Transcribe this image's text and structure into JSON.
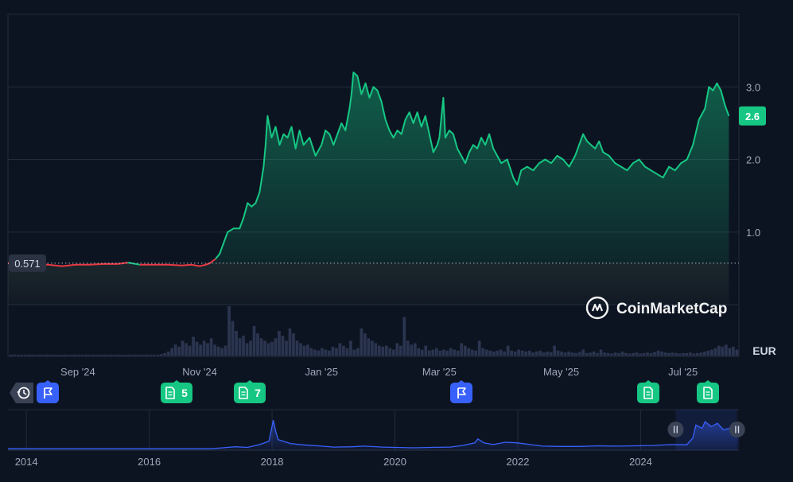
{
  "currency": "EUR",
  "brand": {
    "name": "CoinMarketCap"
  },
  "colors": {
    "background": "#0d1421",
    "up": "#16c784",
    "down": "#ea3943",
    "navigator_line": "#3861fb",
    "grid": "#222b3c",
    "volume": "#2b3550",
    "flag_marker": "#3861fb",
    "news_marker": "#16c784"
  },
  "chart_data": [
    {
      "type": "area",
      "name": "price",
      "baseline": {
        "value": 0.571,
        "label": "0.571"
      },
      "current": {
        "value": 2.6,
        "label": "2.6"
      },
      "y_ticks": [
        {
          "value": 1.0,
          "label": "1.0"
        },
        {
          "value": 2.0,
          "label": "2.0"
        },
        {
          "value": 3.0,
          "label": "3.0"
        }
      ],
      "x_ticks": [
        {
          "date": "2024-09-01",
          "label": "Sep '24"
        },
        {
          "date": "2024-11-01",
          "label": "Nov '24"
        },
        {
          "date": "2025-01-01",
          "label": "Jan '25"
        },
        {
          "date": "2025-03-01",
          "label": "Mar '25"
        },
        {
          "date": "2025-05-01",
          "label": "May '25"
        },
        {
          "date": "2025-07-01",
          "label": "Jul '25"
        }
      ],
      "ylim": [
        0.0,
        4.0
      ],
      "xlim": [
        "2024-07-28",
        "2025-07-29"
      ],
      "grid": true,
      "points": [
        [
          "2024-07-28",
          0.57
        ],
        [
          "2024-08-03",
          0.56
        ],
        [
          "2024-08-10",
          0.55
        ],
        [
          "2024-08-17",
          0.55
        ],
        [
          "2024-08-24",
          0.53
        ],
        [
          "2024-08-31",
          0.55
        ],
        [
          "2024-09-07",
          0.55
        ],
        [
          "2024-09-14",
          0.56
        ],
        [
          "2024-09-21",
          0.56
        ],
        [
          "2024-09-26",
          0.58
        ],
        [
          "2024-10-02",
          0.55
        ],
        [
          "2024-10-09",
          0.55
        ],
        [
          "2024-10-16",
          0.55
        ],
        [
          "2024-10-23",
          0.54
        ],
        [
          "2024-10-28",
          0.55
        ],
        [
          "2024-11-01",
          0.53
        ],
        [
          "2024-11-04",
          0.55
        ],
        [
          "2024-11-06",
          0.57
        ],
        [
          "2024-11-09",
          0.63
        ],
        [
          "2024-11-11",
          0.7
        ],
        [
          "2024-11-13",
          0.85
        ],
        [
          "2024-11-15",
          1.0
        ],
        [
          "2024-11-18",
          1.05
        ],
        [
          "2024-11-21",
          1.05
        ],
        [
          "2024-11-23",
          1.2
        ],
        [
          "2024-11-25",
          1.4
        ],
        [
          "2024-11-27",
          1.35
        ],
        [
          "2024-11-29",
          1.4
        ],
        [
          "2024-12-01",
          1.55
        ],
        [
          "2024-12-03",
          1.9
        ],
        [
          "2024-12-04",
          2.2
        ],
        [
          "2024-12-05",
          2.6
        ],
        [
          "2024-12-07",
          2.3
        ],
        [
          "2024-12-09",
          2.45
        ],
        [
          "2024-12-11",
          2.2
        ],
        [
          "2024-12-13",
          2.35
        ],
        [
          "2024-12-15",
          2.3
        ],
        [
          "2024-12-17",
          2.45
        ],
        [
          "2024-12-19",
          2.15
        ],
        [
          "2024-12-21",
          2.4
        ],
        [
          "2024-12-23",
          2.2
        ],
        [
          "2024-12-26",
          2.3
        ],
        [
          "2024-12-29",
          2.05
        ],
        [
          "2025-01-01",
          2.2
        ],
        [
          "2025-01-03",
          2.4
        ],
        [
          "2025-01-05",
          2.35
        ],
        [
          "2025-01-07",
          2.2
        ],
        [
          "2025-01-09",
          2.35
        ],
        [
          "2025-01-11",
          2.5
        ],
        [
          "2025-01-13",
          2.4
        ],
        [
          "2025-01-15",
          2.7
        ],
        [
          "2025-01-16",
          2.9
        ],
        [
          "2025-01-17",
          3.2
        ],
        [
          "2025-01-19",
          3.15
        ],
        [
          "2025-01-21",
          2.9
        ],
        [
          "2025-01-23",
          3.05
        ],
        [
          "2025-01-25",
          2.85
        ],
        [
          "2025-01-27",
          3.0
        ],
        [
          "2025-01-29",
          2.95
        ],
        [
          "2025-01-31",
          2.8
        ],
        [
          "2025-02-02",
          2.55
        ],
        [
          "2025-02-04",
          2.4
        ],
        [
          "2025-02-06",
          2.3
        ],
        [
          "2025-02-08",
          2.4
        ],
        [
          "2025-02-10",
          2.35
        ],
        [
          "2025-02-12",
          2.55
        ],
        [
          "2025-02-14",
          2.65
        ],
        [
          "2025-02-16",
          2.5
        ],
        [
          "2025-02-18",
          2.65
        ],
        [
          "2025-02-20",
          2.45
        ],
        [
          "2025-02-22",
          2.6
        ],
        [
          "2025-02-24",
          2.35
        ],
        [
          "2025-02-26",
          2.1
        ],
        [
          "2025-02-28",
          2.2
        ],
        [
          "2025-03-01",
          2.3
        ],
        [
          "2025-03-03",
          2.85
        ],
        [
          "2025-03-04",
          2.3
        ],
        [
          "2025-03-06",
          2.4
        ],
        [
          "2025-03-08",
          2.35
        ],
        [
          "2025-03-10",
          2.15
        ],
        [
          "2025-03-12",
          2.05
        ],
        [
          "2025-03-14",
          1.95
        ],
        [
          "2025-03-16",
          2.1
        ],
        [
          "2025-03-18",
          2.2
        ],
        [
          "2025-03-20",
          2.15
        ],
        [
          "2025-03-22",
          2.3
        ],
        [
          "2025-03-24",
          2.2
        ],
        [
          "2025-03-26",
          2.35
        ],
        [
          "2025-03-28",
          2.15
        ],
        [
          "2025-03-30",
          2.05
        ],
        [
          "2025-04-01",
          1.95
        ],
        [
          "2025-04-04",
          2.0
        ],
        [
          "2025-04-07",
          1.75
        ],
        [
          "2025-04-09",
          1.65
        ],
        [
          "2025-04-11",
          1.85
        ],
        [
          "2025-04-14",
          1.9
        ],
        [
          "2025-04-17",
          1.85
        ],
        [
          "2025-04-20",
          1.95
        ],
        [
          "2025-04-23",
          2.0
        ],
        [
          "2025-04-26",
          1.95
        ],
        [
          "2025-04-29",
          2.05
        ],
        [
          "2025-05-02",
          2.0
        ],
        [
          "2025-05-05",
          1.9
        ],
        [
          "2025-05-08",
          2.05
        ],
        [
          "2025-05-10",
          2.2
        ],
        [
          "2025-05-12",
          2.35
        ],
        [
          "2025-05-14",
          2.25
        ],
        [
          "2025-05-16",
          2.2
        ],
        [
          "2025-05-18",
          2.15
        ],
        [
          "2025-05-20",
          2.25
        ],
        [
          "2025-05-22",
          2.1
        ],
        [
          "2025-05-25",
          2.05
        ],
        [
          "2025-05-28",
          1.95
        ],
        [
          "2025-05-31",
          1.9
        ],
        [
          "2025-06-03",
          1.85
        ],
        [
          "2025-06-06",
          1.95
        ],
        [
          "2025-06-09",
          2.0
        ],
        [
          "2025-06-12",
          1.9
        ],
        [
          "2025-06-15",
          1.85
        ],
        [
          "2025-06-18",
          1.8
        ],
        [
          "2025-06-21",
          1.75
        ],
        [
          "2025-06-24",
          1.9
        ],
        [
          "2025-06-27",
          1.85
        ],
        [
          "2025-06-30",
          1.95
        ],
        [
          "2025-07-03",
          2.0
        ],
        [
          "2025-07-06",
          2.2
        ],
        [
          "2025-07-09",
          2.55
        ],
        [
          "2025-07-12",
          2.7
        ],
        [
          "2025-07-14",
          3.0
        ],
        [
          "2025-07-16",
          2.95
        ],
        [
          "2025-07-18",
          3.05
        ],
        [
          "2025-07-20",
          2.95
        ],
        [
          "2025-07-22",
          2.75
        ],
        [
          "2025-07-24",
          2.6
        ]
      ]
    },
    {
      "type": "bar",
      "name": "volume",
      "note": "relative heights, no axis printed",
      "values": [
        0.02,
        0.02,
        0.01,
        0.02,
        0.01,
        0.02,
        0.01,
        0.01,
        0.02,
        0.01,
        0.02,
        0.01,
        0.02,
        0.01,
        0.01,
        0.02,
        0.01,
        0.01,
        0.02,
        0.01,
        0.01,
        0.02,
        0.01,
        0.02,
        0.01,
        0.01,
        0.02,
        0.01,
        0.02,
        0.01,
        0.02,
        0.01,
        0.01,
        0.02,
        0.01,
        0.02,
        0.01,
        0.01,
        0.02,
        0.01,
        0.02,
        0.01,
        0.03,
        0.05,
        0.08,
        0.15,
        0.22,
        0.18,
        0.3,
        0.25,
        0.2,
        0.38,
        0.28,
        0.22,
        0.3,
        0.25,
        0.35,
        0.22,
        0.18,
        0.15,
        0.2,
        1.0,
        0.7,
        0.5,
        0.35,
        0.4,
        0.25,
        0.3,
        0.6,
        0.45,
        0.35,
        0.3,
        0.25,
        0.28,
        0.35,
        0.5,
        0.4,
        0.3,
        0.55,
        0.45,
        0.3,
        0.25,
        0.2,
        0.22,
        0.15,
        0.12,
        0.1,
        0.15,
        0.12,
        0.1,
        0.18,
        0.15,
        0.25,
        0.2,
        0.15,
        0.3,
        0.12,
        0.15,
        0.55,
        0.45,
        0.35,
        0.3,
        0.25,
        0.2,
        0.18,
        0.2,
        0.15,
        0.12,
        0.25,
        0.2,
        0.78,
        0.3,
        0.22,
        0.25,
        0.15,
        0.12,
        0.2,
        0.1,
        0.12,
        0.15,
        0.1,
        0.12,
        0.1,
        0.15,
        0.12,
        0.1,
        0.25,
        0.2,
        0.15,
        0.12,
        0.1,
        0.3,
        0.15,
        0.12,
        0.1,
        0.08,
        0.1,
        0.12,
        0.08,
        0.2,
        0.1,
        0.08,
        0.12,
        0.1,
        0.08,
        0.1,
        0.06,
        0.08,
        0.1,
        0.06,
        0.08,
        0.07,
        0.2,
        0.1,
        0.08,
        0.06,
        0.08,
        0.06,
        0.05,
        0.07,
        0.12,
        0.05,
        0.06,
        0.08,
        0.05,
        0.12,
        0.06,
        0.05,
        0.04,
        0.06,
        0.05,
        0.08,
        0.05,
        0.04,
        0.05,
        0.06,
        0.04,
        0.05,
        0.06,
        0.05,
        0.07,
        0.1,
        0.08,
        0.06,
        0.05,
        0.06,
        0.05,
        0.04,
        0.05,
        0.05,
        0.06,
        0.04,
        0.05,
        0.06,
        0.08,
        0.1,
        0.12,
        0.15,
        0.2,
        0.18,
        0.22,
        0.15,
        0.18,
        0.12
      ]
    },
    {
      "type": "area",
      "name": "navigator",
      "x_ticks": [
        {
          "value": 2014,
          "label": "2014"
        },
        {
          "value": 2016,
          "label": "2016"
        },
        {
          "value": 2018,
          "label": "2018"
        },
        {
          "value": 2020,
          "label": "2020"
        },
        {
          "value": 2022,
          "label": "2022"
        },
        {
          "value": 2024,
          "label": "2024"
        }
      ],
      "xlim": [
        2013.7,
        2025.6
      ],
      "ylim": [
        0,
        1
      ],
      "selection": [
        2024.57,
        2025.57
      ],
      "points": [
        [
          2013.7,
          0.02
        ],
        [
          2014.5,
          0.02
        ],
        [
          2015.5,
          0.02
        ],
        [
          2016.5,
          0.02
        ],
        [
          2017.0,
          0.02
        ],
        [
          2017.2,
          0.05
        ],
        [
          2017.4,
          0.08
        ],
        [
          2017.6,
          0.06
        ],
        [
          2017.8,
          0.15
        ],
        [
          2017.95,
          0.25
        ],
        [
          2018.02,
          0.9
        ],
        [
          2018.06,
          0.55
        ],
        [
          2018.1,
          0.3
        ],
        [
          2018.3,
          0.18
        ],
        [
          2018.5,
          0.14
        ],
        [
          2018.8,
          0.1
        ],
        [
          2019.0,
          0.07
        ],
        [
          2019.3,
          0.08
        ],
        [
          2019.5,
          0.1
        ],
        [
          2019.8,
          0.07
        ],
        [
          2020.0,
          0.06
        ],
        [
          2020.3,
          0.05
        ],
        [
          2020.6,
          0.06
        ],
        [
          2020.9,
          0.07
        ],
        [
          2021.1,
          0.12
        ],
        [
          2021.3,
          0.2
        ],
        [
          2021.35,
          0.32
        ],
        [
          2021.45,
          0.2
        ],
        [
          2021.6,
          0.15
        ],
        [
          2021.8,
          0.22
        ],
        [
          2022.0,
          0.2
        ],
        [
          2022.2,
          0.15
        ],
        [
          2022.4,
          0.1
        ],
        [
          2022.7,
          0.09
        ],
        [
          2023.0,
          0.09
        ],
        [
          2023.3,
          0.11
        ],
        [
          2023.6,
          0.1
        ],
        [
          2023.9,
          0.11
        ],
        [
          2024.2,
          0.12
        ],
        [
          2024.5,
          0.15
        ],
        [
          2024.75,
          0.14
        ],
        [
          2024.85,
          0.35
        ],
        [
          2024.9,
          0.75
        ],
        [
          2025.0,
          0.65
        ],
        [
          2025.05,
          0.85
        ],
        [
          2025.15,
          0.7
        ],
        [
          2025.25,
          0.8
        ],
        [
          2025.35,
          0.6
        ],
        [
          2025.45,
          0.65
        ],
        [
          2025.55,
          0.8
        ],
        [
          2025.6,
          0.65
        ]
      ]
    }
  ],
  "event_markers": [
    {
      "type": "history",
      "label": ""
    },
    {
      "type": "flag",
      "label": ""
    },
    {
      "type": "news",
      "label": "5"
    },
    {
      "type": "news",
      "label": "7"
    },
    {
      "type": "flag",
      "label": ""
    },
    {
      "type": "news",
      "label": ""
    },
    {
      "type": "news",
      "label": ""
    }
  ]
}
